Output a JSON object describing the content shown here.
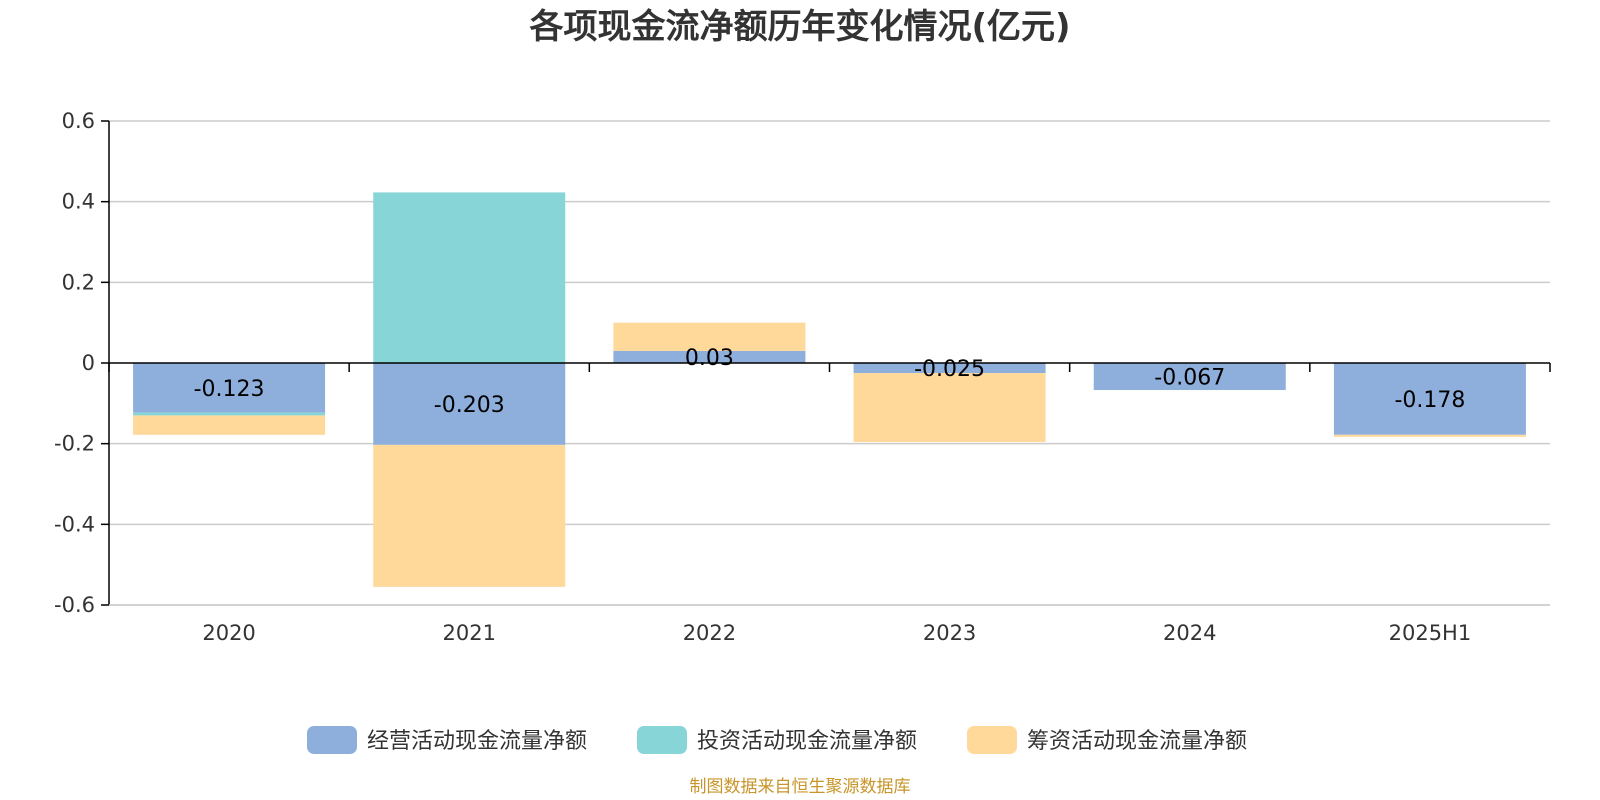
{
  "source": "制图数据来自恒生聚源数据库",
  "colors": {
    "source_text": "#c8952a",
    "grid": "#cccccc",
    "axis": "#000000"
  },
  "chart_data": {
    "type": "bar",
    "stacked": true,
    "title": "各项现金流净额历年变化情况(亿元)",
    "categories": [
      "2020",
      "2021",
      "2022",
      "2023",
      "2024",
      "2025H1"
    ],
    "ylim": [
      -0.6,
      0.6
    ],
    "yticks": [
      0.6,
      0.4,
      0.2,
      0,
      -0.2,
      -0.4,
      -0.6
    ],
    "ytick_labels": [
      "0.6",
      "0.4",
      "0.2",
      "0",
      "-0.2",
      "-0.4",
      "-0.6"
    ],
    "grid": true,
    "legend_position": "bottom",
    "series": [
      {
        "name": "经营活动现金流量净额",
        "color": "#8eaedb",
        "values": [
          -0.123,
          -0.203,
          0.03,
          -0.025,
          -0.067,
          -0.178
        ],
        "labels": [
          "-0.123",
          "-0.203",
          "0.03",
          "-0.025",
          "-0.067",
          "-0.178"
        ]
      },
      {
        "name": "投资活动现金流量净额",
        "color": "#88d5d8",
        "values": [
          -0.007,
          0.423,
          0.0,
          0.0,
          0.0,
          0.0
        ]
      },
      {
        "name": "筹资活动现金流量净额",
        "color": "#fed999",
        "values": [
          -0.048,
          -0.352,
          0.07,
          -0.171,
          0.0,
          -0.005
        ]
      }
    ]
  }
}
